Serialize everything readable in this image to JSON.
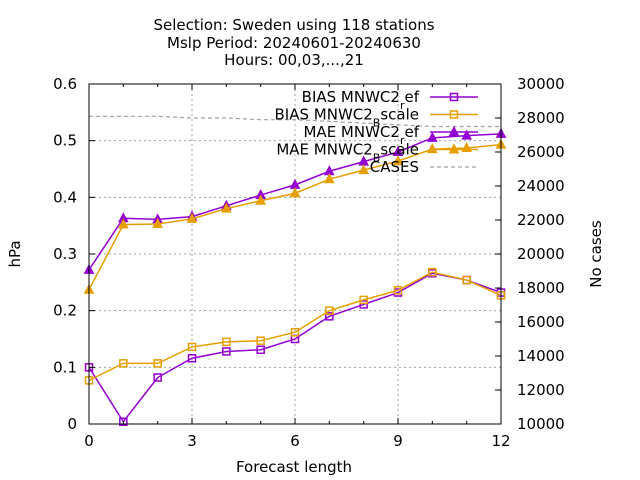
{
  "chart_data": {
    "type": "line",
    "title_lines": [
      "Selection: Sweden using   118 stations",
      "Mslp   Period: 20240601-20240630",
      "Hours: 00,03,...,21"
    ],
    "xlabel": "Forecast length",
    "ylabel": "hPa",
    "y2label": "No cases",
    "xlim": [
      0,
      12
    ],
    "ylim": [
      0,
      0.6
    ],
    "y2lim": [
      10000,
      30000
    ],
    "x_ticks": [
      0,
      3,
      6,
      9,
      12
    ],
    "y_ticks": [
      "0",
      "0.1",
      "0.2",
      "0.3",
      "0.4",
      "0.5",
      "0.6"
    ],
    "y2_ticks": [
      "10000",
      "12000",
      "14000",
      "16000",
      "18000",
      "20000",
      "22000",
      "24000",
      "26000",
      "28000",
      "30000"
    ],
    "grid": true,
    "legend_position": "top-right",
    "x": [
      0,
      1,
      2,
      3,
      4,
      5,
      6,
      7,
      8,
      9,
      10,
      11,
      12
    ],
    "series": [
      {
        "name": "BIAS MNWC2_ref",
        "legend_main": "BIAS MNWC2",
        "legend_sub": "r",
        "legend_tail": "ef",
        "color": "#9400d3",
        "marker": "square",
        "axis": "y",
        "values": [
          0.1,
          0.004,
          0.082,
          0.116,
          0.128,
          0.131,
          0.15,
          0.19,
          0.211,
          0.232,
          0.266,
          0.254,
          0.232
        ]
      },
      {
        "name": "BIAS MNWC2_Bscale",
        "legend_main": "BIAS MNWC2",
        "legend_sub": "B",
        "legend_tail": "scale",
        "color": "#e69f00",
        "marker": "square",
        "axis": "y",
        "values": [
          0.077,
          0.107,
          0.107,
          0.136,
          0.145,
          0.147,
          0.162,
          0.2,
          0.219,
          0.236,
          0.268,
          0.254,
          0.227
        ]
      },
      {
        "name": "MAE MNWC2_ref",
        "legend_main": "MAE MNWC2",
        "legend_sub": "r",
        "legend_tail": "ef",
        "color": "#9400d3",
        "marker": "triangle",
        "axis": "y",
        "values": [
          0.272,
          0.363,
          0.361,
          0.366,
          0.385,
          0.404,
          0.422,
          0.446,
          0.463,
          0.48,
          0.505,
          0.509,
          0.512
        ]
      },
      {
        "name": "MAE MNWC2_Bscale",
        "legend_main": "MAE MNWC2",
        "legend_sub": "B",
        "legend_tail": "scale",
        "color": "#e69f00",
        "marker": "triangle",
        "axis": "y",
        "values": [
          0.237,
          0.352,
          0.353,
          0.362,
          0.38,
          0.394,
          0.407,
          0.432,
          0.448,
          0.464,
          0.485,
          0.487,
          0.493
        ]
      },
      {
        "name": "CASES",
        "legend_main": "CASES",
        "legend_sub": "",
        "legend_tail": "",
        "color": "#a0a0a0",
        "marker": "none",
        "dashed": true,
        "axis": "y2",
        "values": [
          28100,
          28100,
          28100,
          28000,
          28000,
          27900,
          27900,
          27800,
          27700,
          27600,
          27500,
          27500,
          27500
        ]
      }
    ]
  }
}
